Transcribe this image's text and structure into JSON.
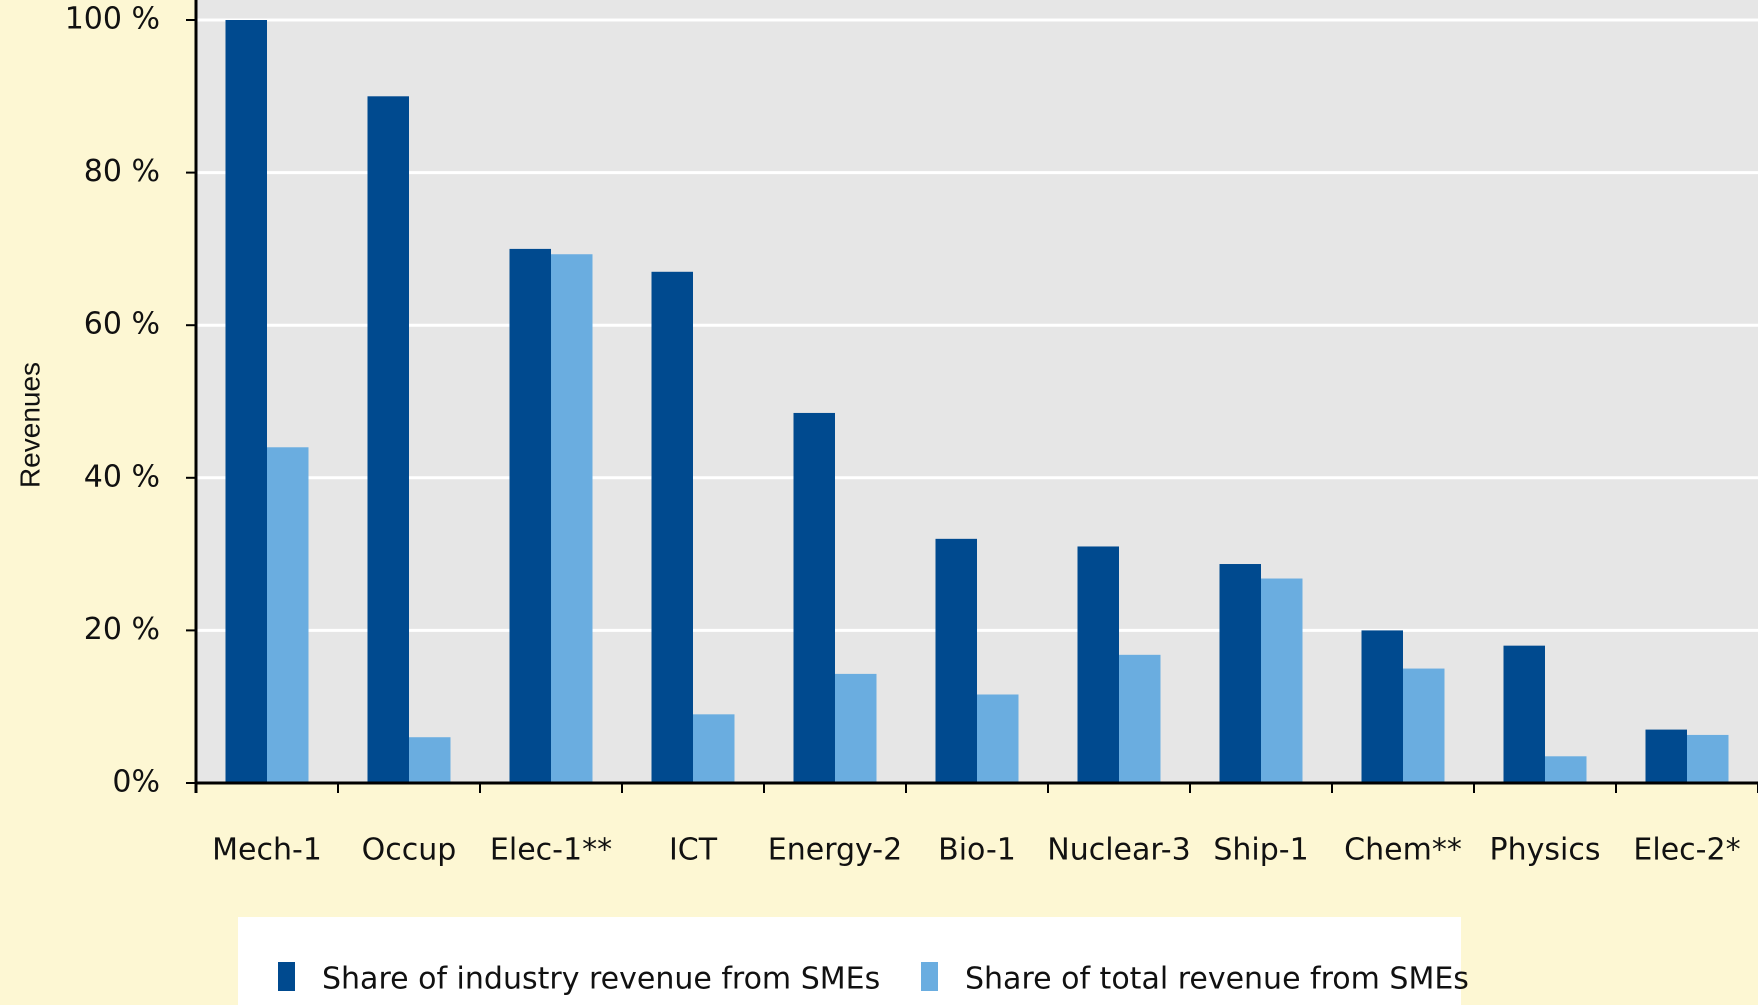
{
  "chart_data": {
    "type": "bar",
    "ylabel": "Revenues",
    "categories": [
      "Mech-1",
      "Occup",
      "Elec-1**",
      "ICT",
      "Energy-2",
      "Bio-1",
      "Nuclear-3",
      "Ship-1",
      "Chem**",
      "Physics",
      "Elec-2*"
    ],
    "series": [
      {
        "name": "Share of industry revenue from SMEs",
        "color": "#004a8f",
        "values": [
          100,
          90,
          70,
          67,
          48.5,
          32,
          31,
          28.7,
          20,
          18,
          7
        ]
      },
      {
        "name": "Share of total revenue from SMEs",
        "color": "#6aade0",
        "values": [
          44,
          6,
          69.3,
          9,
          14.3,
          11.6,
          16.8,
          26.8,
          15,
          3.5,
          6.3
        ]
      }
    ],
    "ylim": [
      0,
      100
    ],
    "yticks": [
      {
        "value": 0,
        "label": "0%"
      },
      {
        "value": 20,
        "label": "20 %"
      },
      {
        "value": 40,
        "label": "40 %"
      },
      {
        "value": 60,
        "label": "60 %"
      },
      {
        "value": 80,
        "label": "80 %"
      },
      {
        "value": 100,
        "label": "100 %"
      }
    ],
    "grid": true,
    "legend": "bottom"
  }
}
